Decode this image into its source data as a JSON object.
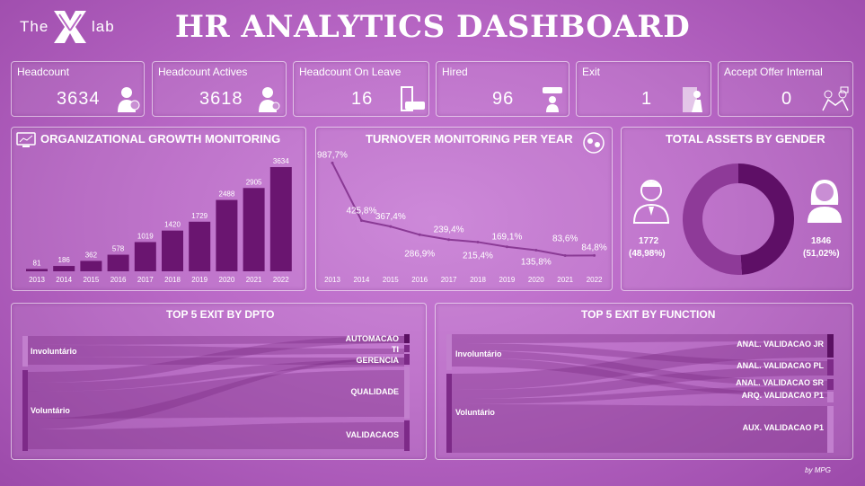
{
  "header": {
    "logo_the": "The",
    "logo_lab": "lab",
    "title": "HR ANALYTICS DASHBOARD"
  },
  "kpis": [
    {
      "label": "Headcount",
      "value": "3634",
      "icon": "employee-badge-icon"
    },
    {
      "label": "Headcount Actives",
      "value": "3618",
      "icon": "employee-icon"
    },
    {
      "label": "Headcount On Leave",
      "value": "16",
      "icon": "exit-door-icon"
    },
    {
      "label": "Hired",
      "value": "96",
      "icon": "hired-icon"
    },
    {
      "label": "Exit",
      "value": "1",
      "icon": "exit-person-icon"
    },
    {
      "label": "Accept Offer Internal",
      "value": "0",
      "icon": "handshake-icon"
    }
  ],
  "growth": {
    "title": "ORGANIZATIONAL GROWTH MONITORING",
    "icon": "monitor-chart-icon"
  },
  "turnover": {
    "title": "TURNOVER MONITORING PER YEAR",
    "icon": "people-cycle-icon"
  },
  "gender": {
    "title": "TOTAL ASSETS BY GENDER",
    "male_value": "1772",
    "male_pct": "(48,98%)",
    "female_value": "1846",
    "female_pct": "(51,02%)"
  },
  "exit_dpto": {
    "title": "TOP 5 EXIT BY DPTO",
    "sources": [
      "Involuntário",
      "Voluntário"
    ],
    "targets": [
      "AUTOMACAO",
      "TI",
      "GERENCIA",
      "QUALIDADE",
      "VALIDACAOS"
    ]
  },
  "exit_function": {
    "title": "TOP 5 EXIT BY FUNCTION",
    "sources": [
      "Involuntário",
      "Voluntário"
    ],
    "targets": [
      "ANAL. VALIDACAO JR",
      "ANAL. VALIDACAO PL",
      "ANAL. VALIDACAO SR",
      "ARQ. VALIDACAO P1",
      "AUX. VALIDACAO P1"
    ]
  },
  "footer": "by MPG",
  "colors": {
    "bar": "#6a1570",
    "line": "#8a3a95",
    "donut_dark": "#5e0f66",
    "donut_light": "#8e3a98"
  },
  "chart_data": [
    {
      "type": "bar",
      "categories": [
        "2013",
        "2014",
        "2015",
        "2016",
        "2017",
        "2018",
        "2019",
        "2020",
        "2021",
        "2022"
      ],
      "values": [
        81,
        186,
        362,
        578,
        1019,
        1420,
        1729,
        2488,
        2905,
        3634
      ],
      "labels": [
        "81",
        "186",
        "362",
        "578",
        "1019",
        "1420",
        "1729",
        "2488",
        "2905",
        "3634"
      ],
      "ylim": [
        0,
        3634
      ]
    },
    {
      "type": "line",
      "categories": [
        "2013",
        "2014",
        "2015",
        "2016",
        "2017",
        "2018",
        "2019",
        "2020",
        "2021",
        "2022"
      ],
      "values": [
        987.7,
        425.8,
        367.4,
        286.9,
        239.4,
        215.4,
        169.1,
        135.8,
        83.6,
        84.8
      ],
      "labels": [
        "987,7%",
        "425,8%",
        "367,4%",
        "286,9%",
        "239,4%",
        "215,4%",
        "169,1%",
        "135,8%",
        "83,6%",
        "84,8%"
      ],
      "ylim": [
        0,
        1000
      ]
    },
    {
      "type": "pie",
      "categories": [
        "Male",
        "Female"
      ],
      "values": [
        1772,
        1846
      ]
    }
  ]
}
